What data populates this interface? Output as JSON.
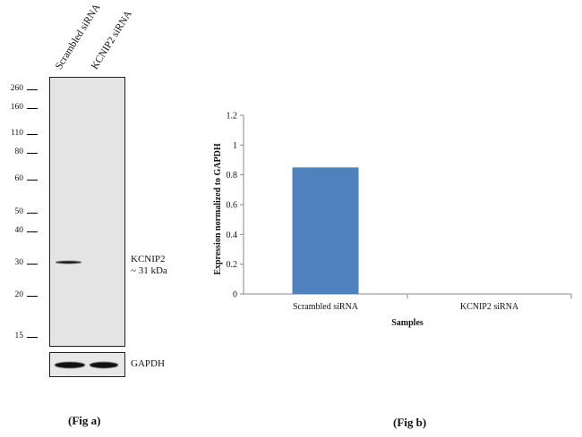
{
  "fig_a": {
    "lanes": [
      "Scrambled siRNA",
      "KCNIP2 siRNA"
    ],
    "mw_markers": [
      "260",
      "160",
      "110",
      "80",
      "60",
      "50",
      "40",
      "30",
      "20",
      "15"
    ],
    "target_label_line1": "KCNIP2",
    "target_label_line2": "~ 31 kDa",
    "loading_control": "GAPDH",
    "caption": "(Fig a)"
  },
  "fig_b": {
    "caption": "(Fig b)"
  },
  "chart_data": {
    "type": "bar",
    "categories": [
      "Scrambled siRNA",
      "KCNIP2 siRNA"
    ],
    "values": [
      0.85,
      0.0
    ],
    "xlabel": "Samples",
    "ylabel": "Expression normalized to GAPDH",
    "ylim": [
      0,
      1.2
    ],
    "yticks": [
      "0",
      "0.2",
      "0.4",
      "0.6",
      "0.8",
      "1",
      "1.2"
    ],
    "bar_color": "#4f81bd",
    "grid": false,
    "legend": "none"
  }
}
